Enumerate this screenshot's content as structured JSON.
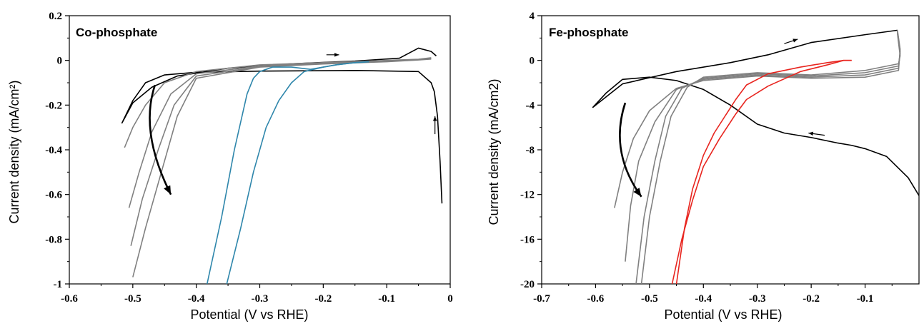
{
  "chart_data": [
    {
      "type": "line",
      "title": "Co-phosphate",
      "xlabel": "Potential (V vs RHE)",
      "ylabel": "Current density (mA/cm²)",
      "xlim": [
        -0.6,
        0
      ],
      "ylim": [
        -1,
        0.2
      ],
      "xticks": [
        -0.6,
        -0.5,
        -0.4,
        -0.3,
        -0.2,
        -0.1,
        0
      ],
      "xtick_labels": [
        "-0.6",
        "-0.5",
        "-0.4",
        "-0.3",
        "-0.2",
        "-0.1",
        "0"
      ],
      "yticks": [
        0.2,
        0,
        -0.2,
        -0.4,
        -0.6,
        -0.8,
        -1
      ],
      "ytick_labels": [
        "0.2",
        "0",
        "-0.2",
        "-0.4",
        "-0.6",
        "-0.8",
        "-1"
      ],
      "grid": false,
      "series": [
        {
          "color": "#000000",
          "x": [
            -0.013,
            -0.016,
            -0.02,
            -0.025,
            -0.03,
            -0.05,
            -0.15,
            -0.3,
            -0.4,
            -0.45,
            -0.48,
            -0.5,
            -0.517,
            -0.5,
            -0.47,
            -0.43,
            -0.35,
            -0.25,
            -0.15,
            -0.08,
            -0.05,
            -0.03,
            -0.022
          ],
          "y": [
            -0.64,
            -0.45,
            -0.25,
            -0.14,
            -0.1,
            -0.05,
            -0.045,
            -0.048,
            -0.053,
            -0.065,
            -0.1,
            -0.18,
            -0.28,
            -0.19,
            -0.12,
            -0.07,
            -0.035,
            -0.015,
            -0.003,
            0.01,
            0.055,
            0.04,
            0.02
          ]
        },
        {
          "color": "#808080",
          "x": [
            -0.03,
            -0.05,
            -0.1,
            -0.2,
            -0.3,
            -0.4,
            -0.45,
            -0.48,
            -0.5,
            -0.513
          ],
          "y": [
            0.012,
            0.005,
            0.0,
            -0.01,
            -0.02,
            -0.05,
            -0.1,
            -0.2,
            -0.3,
            -0.39
          ]
        },
        {
          "color": "#808080",
          "x": [
            -0.03,
            -0.05,
            -0.1,
            -0.2,
            -0.3,
            -0.4,
            -0.44,
            -0.47,
            -0.49,
            -0.506
          ],
          "y": [
            0.01,
            0.004,
            -0.002,
            -0.012,
            -0.025,
            -0.06,
            -0.15,
            -0.32,
            -0.5,
            -0.66
          ]
        },
        {
          "color": "#808080",
          "x": [
            -0.03,
            -0.05,
            -0.1,
            -0.2,
            -0.3,
            -0.4,
            -0.435,
            -0.46,
            -0.485,
            -0.503
          ],
          "y": [
            0.008,
            0.003,
            -0.004,
            -0.014,
            -0.028,
            -0.07,
            -0.2,
            -0.4,
            -0.62,
            -0.83
          ]
        },
        {
          "color": "#808080",
          "x": [
            -0.03,
            -0.05,
            -0.1,
            -0.2,
            -0.3,
            -0.4,
            -0.43,
            -0.455,
            -0.48,
            -0.5
          ],
          "y": [
            0.006,
            0.002,
            -0.006,
            -0.016,
            -0.03,
            -0.08,
            -0.25,
            -0.5,
            -0.75,
            -0.97
          ]
        },
        {
          "color": "#2E86AB",
          "x": [
            -0.128,
            -0.15,
            -0.18,
            -0.22,
            -0.25,
            -0.28,
            -0.3,
            -0.31,
            -0.32,
            -0.34,
            -0.36,
            -0.383
          ],
          "y": [
            -0.006,
            -0.01,
            -0.02,
            -0.04,
            -0.03,
            -0.03,
            -0.05,
            -0.08,
            -0.15,
            -0.4,
            -0.7,
            -1.0
          ]
        },
        {
          "color": "#2E86AB",
          "x": [
            -0.128,
            -0.15,
            -0.18,
            -0.2,
            -0.23,
            -0.25,
            -0.27,
            -0.29,
            -0.31,
            -0.33,
            -0.352
          ],
          "y": [
            -0.006,
            -0.01,
            -0.02,
            -0.03,
            -0.05,
            -0.1,
            -0.18,
            -0.3,
            -0.5,
            -0.75,
            -1.0
          ]
        }
      ],
      "annotations": [
        {
          "type": "arrow",
          "points": [
            [
              -0.465,
              -0.11
            ],
            [
              -0.49,
              -0.32
            ],
            [
              -0.44,
              -0.6
            ]
          ],
          "color": "#000000"
        },
        {
          "type": "arrow",
          "points": [
            [
              -0.195,
              0.025
            ],
            [
              -0.175,
              0.025
            ]
          ],
          "color": "#000000"
        },
        {
          "type": "arrow",
          "points": [
            [
              -0.024,
              -0.33
            ],
            [
              -0.024,
              -0.25
            ]
          ],
          "color": "#000000"
        }
      ]
    },
    {
      "type": "line",
      "title": "Fe-phosphate",
      "xlabel": "Potential (V vs RHE)",
      "ylabel": "Current density (mA/cm2)",
      "xlim": [
        -0.7,
        0
      ],
      "ylim": [
        -20,
        4
      ],
      "xticks": [
        -0.7,
        -0.6,
        -0.5,
        -0.4,
        -0.3,
        -0.2,
        -0.1
      ],
      "xtick_labels": [
        "-0.7",
        "-0.6",
        "-0.5",
        "-0.4",
        "-0.3",
        "-0.2",
        "-0.1"
      ],
      "yticks": [
        4,
        0,
        -4,
        -8,
        -12,
        -16,
        -20
      ],
      "ytick_labels": [
        "4",
        "0",
        "-4",
        "-8",
        "-12",
        "-16",
        "-20"
      ],
      "grid": false,
      "series": [
        {
          "color": "#000000",
          "x": [
            0.0,
            -0.02,
            -0.06,
            -0.1,
            -0.125,
            -0.15,
            -0.2,
            -0.25,
            -0.3,
            -0.35,
            -0.4,
            -0.45,
            -0.5,
            -0.55,
            -0.58,
            -0.605,
            -0.55,
            -0.45,
            -0.35,
            -0.28,
            -0.2,
            -0.1,
            -0.04
          ],
          "y": [
            -12.1,
            -10.5,
            -8.6,
            -7.9,
            -7.6,
            -7.4,
            -6.9,
            -6.5,
            -5.7,
            -4.0,
            -2.6,
            -1.8,
            -1.5,
            -1.7,
            -2.9,
            -4.2,
            -2.1,
            -1.0,
            -0.2,
            0.5,
            1.6,
            2.3,
            2.7
          ]
        },
        {
          "color": "#808080",
          "x": [
            -0.04,
            -0.035,
            -0.038,
            -0.1,
            -0.2,
            -0.3,
            -0.4,
            -0.45,
            -0.5,
            -0.53,
            -0.55,
            -0.565
          ],
          "y": [
            2.7,
            1.0,
            -0.9,
            -1.5,
            -1.6,
            -1.4,
            -1.8,
            -2.5,
            -4.5,
            -7.0,
            -10.0,
            -13.2
          ]
        },
        {
          "color": "#808080",
          "x": [
            -0.04,
            -0.035,
            -0.038,
            -0.1,
            -0.2,
            -0.3,
            -0.4,
            -0.45,
            -0.49,
            -0.52,
            -0.535,
            -0.545
          ],
          "y": [
            2.6,
            0.8,
            -0.7,
            -1.3,
            -1.5,
            -1.3,
            -1.7,
            -2.6,
            -5.5,
            -9.0,
            -13.0,
            -18.0
          ]
        },
        {
          "color": "#808080",
          "x": [
            -0.04,
            -0.035,
            -0.038,
            -0.1,
            -0.2,
            -0.3,
            -0.4,
            -0.44,
            -0.47,
            -0.49,
            -0.51,
            -0.525
          ],
          "y": [
            2.5,
            0.6,
            -0.5,
            -1.1,
            -1.4,
            -1.2,
            -1.6,
            -2.5,
            -5.0,
            -9.0,
            -14.0,
            -20.0
          ]
        },
        {
          "color": "#808080",
          "x": [
            -0.04,
            -0.035,
            -0.038,
            -0.1,
            -0.2,
            -0.3,
            -0.4,
            -0.43,
            -0.46,
            -0.48,
            -0.5,
            -0.515
          ],
          "y": [
            2.4,
            0.4,
            -0.3,
            -0.9,
            -1.3,
            -1.1,
            -1.5,
            -2.4,
            -5.0,
            -9.0,
            -14.0,
            -20.0
          ]
        },
        {
          "color": "#E8251F",
          "x": [
            -0.125,
            -0.14,
            -0.17,
            -0.22,
            -0.28,
            -0.32,
            -0.34,
            -0.37,
            -0.4,
            -0.42,
            -0.44,
            -0.458
          ],
          "y": [
            0.0,
            0.0,
            -0.4,
            -1.0,
            -2.3,
            -3.5,
            -4.8,
            -7.0,
            -9.5,
            -12.5,
            -16.0,
            -20.0
          ]
        },
        {
          "color": "#E8251F",
          "x": [
            -0.125,
            -0.14,
            -0.17,
            -0.22,
            -0.28,
            -0.32,
            -0.34,
            -0.36,
            -0.38,
            -0.4,
            -0.42,
            -0.435,
            -0.45
          ],
          "y": [
            0.0,
            0.0,
            -0.2,
            -0.6,
            -1.2,
            -2.2,
            -3.5,
            -5.0,
            -6.5,
            -8.5,
            -11.5,
            -15.0,
            -20.0
          ]
        }
      ],
      "annotations": [
        {
          "type": "arrow",
          "points": [
            [
              -0.545,
              -3.8
            ],
            [
              -0.575,
              -8.2
            ],
            [
              -0.515,
              -12.2
            ]
          ],
          "color": "#000000"
        },
        {
          "type": "arrow",
          "points": [
            [
              -0.25,
              1.5
            ],
            [
              -0.225,
              1.9
            ]
          ],
          "color": "#000000"
        },
        {
          "type": "arrow",
          "points": [
            [
              -0.175,
              -6.7
            ],
            [
              -0.205,
              -6.5
            ]
          ],
          "color": "#000000"
        }
      ]
    }
  ]
}
